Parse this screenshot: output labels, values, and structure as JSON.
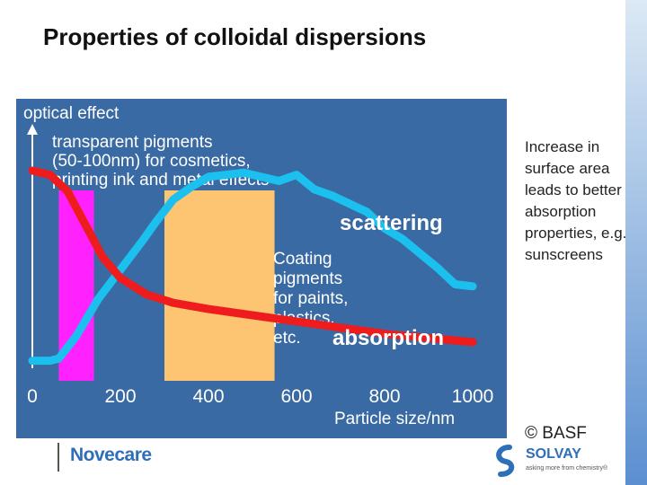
{
  "slide": {
    "title": "Properties of colloidal dispersions",
    "side_note": "Increase in surface area leads to better absorption properties, e.g. sunscreens",
    "credit": "© BASF"
  },
  "footer": {
    "left_brand": "Novecare",
    "right_brand": "SOLVAY",
    "right_tagline": "asking more from chemistry®"
  },
  "chart_data": {
    "type": "line",
    "ylabel": "optical effect",
    "xlabel": "Particle size/nm",
    "xlim": [
      0,
      1000
    ],
    "x_ticks": [
      "0",
      "200",
      "400",
      "600",
      "800",
      "1000"
    ],
    "grid": false,
    "colors": {
      "background": "#3a6aa3",
      "scattering": "#1cc0ef",
      "absorption": "#ee1c1c",
      "transparent_band": "#ff22ff",
      "coating_band": "#fdc572"
    },
    "bands": [
      {
        "from": 60,
        "to": 140,
        "label": "transparent pigments (50-100nm) for cosmetics, printing ink and metal effects",
        "label_lines": [
          "transparent pigments",
          "(50-100nm) for cosmetics,",
          "printing ink and metal effects"
        ]
      },
      {
        "from": 300,
        "to": 550,
        "label": "Coating pigments for paints, plastics, etc.",
        "label_lines": [
          "Coating",
          "pigments",
          "for paints,",
          "plastics,",
          "etc."
        ]
      }
    ],
    "series": [
      {
        "name": "scattering",
        "values": [
          [
            0,
            8
          ],
          [
            40,
            8
          ],
          [
            60,
            9
          ],
          [
            100,
            20
          ],
          [
            150,
            38
          ],
          [
            200,
            52
          ],
          [
            250,
            66
          ],
          [
            280,
            75
          ],
          [
            320,
            86
          ],
          [
            360,
            92
          ],
          [
            400,
            97
          ],
          [
            440,
            98
          ],
          [
            480,
            99
          ],
          [
            520,
            97
          ],
          [
            560,
            95
          ],
          [
            600,
            98
          ],
          [
            640,
            91
          ],
          [
            680,
            88
          ],
          [
            720,
            84
          ],
          [
            760,
            80
          ],
          [
            800,
            72
          ],
          [
            840,
            67
          ],
          [
            880,
            60
          ],
          [
            920,
            53
          ],
          [
            960,
            45
          ],
          [
            1000,
            44
          ]
        ]
      },
      {
        "name": "absorption",
        "values": [
          [
            0,
            100
          ],
          [
            40,
            98
          ],
          [
            80,
            90
          ],
          [
            120,
            74
          ],
          [
            160,
            58
          ],
          [
            200,
            48
          ],
          [
            260,
            40
          ],
          [
            320,
            36
          ],
          [
            400,
            33
          ],
          [
            500,
            30
          ],
          [
            600,
            27
          ],
          [
            700,
            24
          ],
          [
            800,
            21
          ],
          [
            900,
            19
          ],
          [
            1000,
            17
          ]
        ]
      }
    ]
  }
}
